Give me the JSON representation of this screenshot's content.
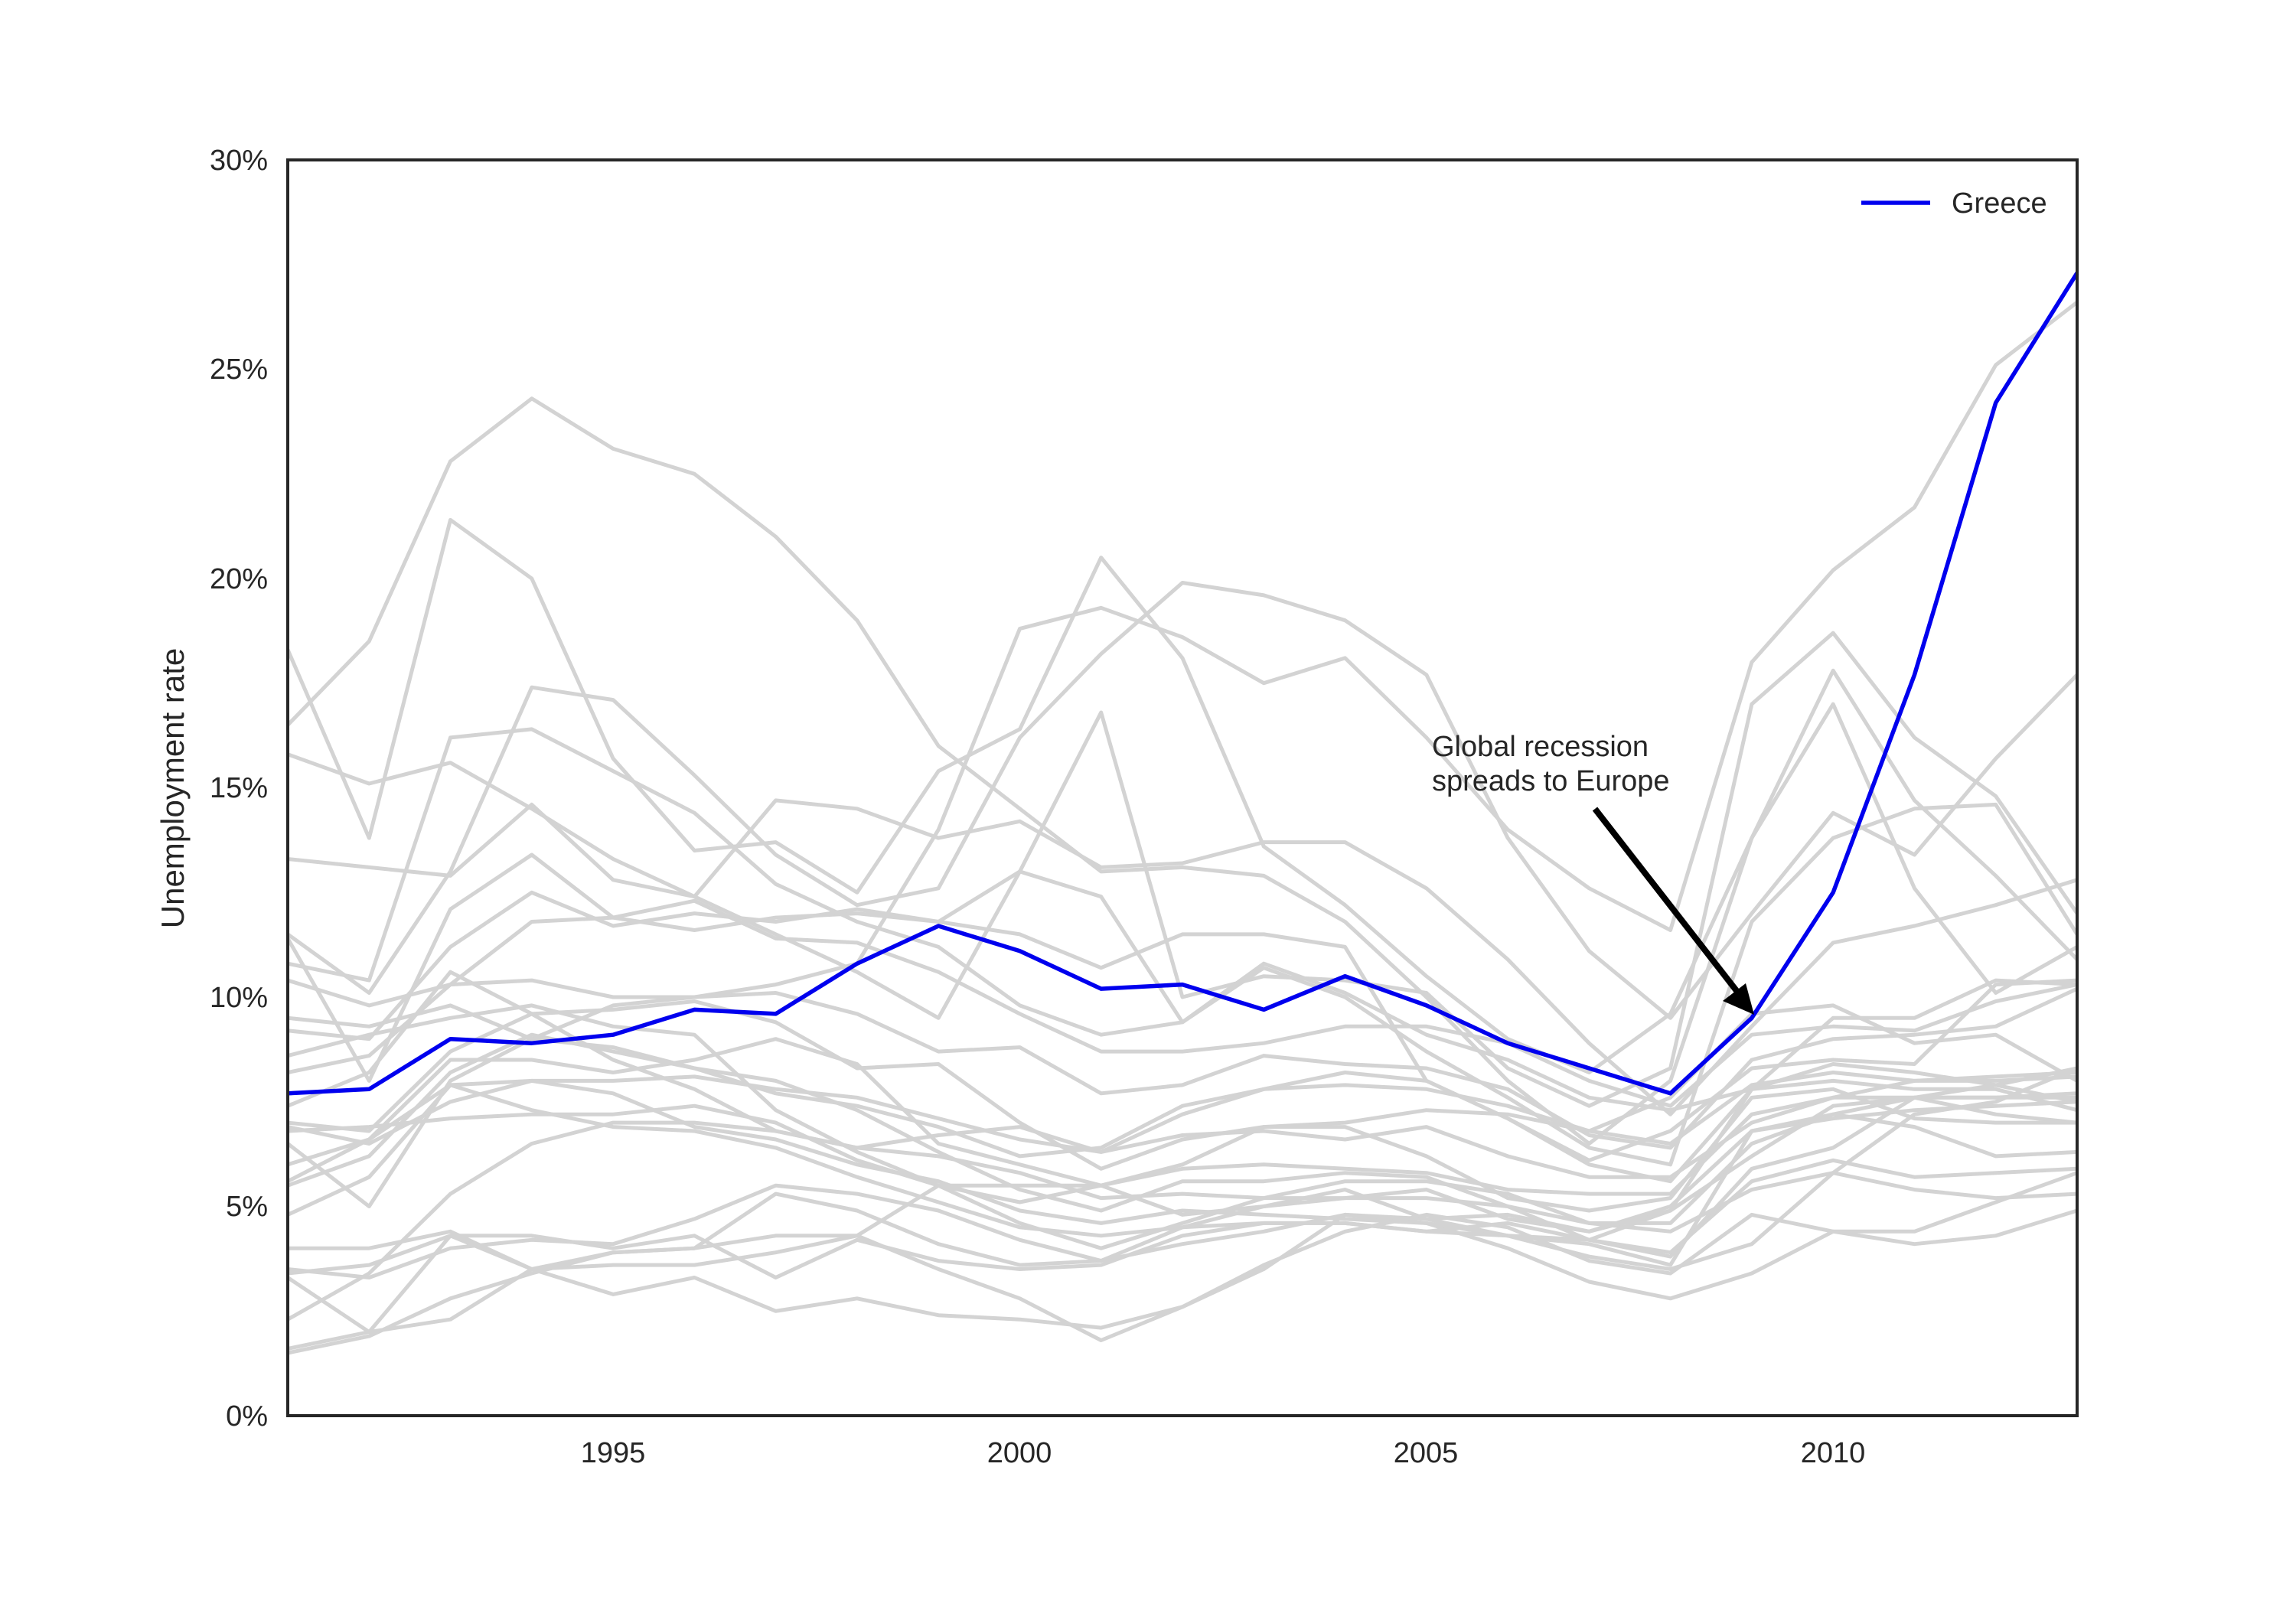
{
  "chart_data": {
    "type": "line",
    "ylabel": "Unemployment rate",
    "xlim": [
      1991,
      2013
    ],
    "ylim": [
      0,
      30
    ],
    "x_ticks": [
      1995,
      2000,
      2005,
      2010
    ],
    "y_ticks": [
      "0%",
      "5%",
      "10%",
      "15%",
      "20%",
      "25%",
      "30%"
    ],
    "y_tick_values": [
      0,
      5,
      10,
      15,
      20,
      25,
      30
    ],
    "grid": false,
    "legend_position": "top-right",
    "highlight_color": "#0000ee",
    "background_color": "#d3d3d3",
    "x": [
      1991,
      1992,
      1993,
      1994,
      1995,
      1996,
      1997,
      1998,
      1999,
      2000,
      2001,
      2002,
      2003,
      2004,
      2005,
      2006,
      2007,
      2008,
      2009,
      2010,
      2011,
      2012,
      2013
    ],
    "highlight_series": {
      "name": "Greece",
      "values": [
        7.7,
        7.8,
        9.0,
        8.9,
        9.1,
        9.7,
        9.6,
        10.8,
        11.7,
        11.1,
        10.2,
        10.3,
        9.7,
        10.5,
        9.8,
        8.9,
        8.3,
        7.7,
        9.5,
        12.5,
        17.7,
        24.2,
        27.3
      ]
    },
    "background_series": [
      {
        "values": [
          16.5,
          18.5,
          22.8,
          24.3,
          23.1,
          22.5,
          21.0,
          19.0,
          16.0,
          14.5,
          13.0,
          13.1,
          12.9,
          11.8,
          10.0,
          8.0,
          6.5,
          8.0,
          13.8,
          17.8,
          14.7,
          12.9,
          10.9
        ]
      },
      {
        "values": [
          18.3,
          13.8,
          21.4,
          20.0,
          15.7,
          13.5,
          13.7,
          12.5,
          15.4,
          16.4,
          20.5,
          18.1,
          13.6,
          12.2,
          10.5,
          9.0,
          8.2,
          9.6,
          13.8,
          17.0,
          12.6,
          10.1,
          11.2
        ]
      },
      {
        "values": [
          11.5,
          10.1,
          13.0,
          17.4,
          17.1,
          15.3,
          13.4,
          12.2,
          12.6,
          16.2,
          18.2,
          19.9,
          19.6,
          19.0,
          17.7,
          13.8,
          11.1,
          9.5,
          12.0,
          14.4,
          13.4,
          15.7,
          17.7
        ]
      },
      {
        "values": [
          6.5,
          5.0,
          8.0,
          9.0,
          9.8,
          10.0,
          10.3,
          10.8,
          14.0,
          18.8,
          19.3,
          18.6,
          17.5,
          18.1,
          16.2,
          14.0,
          12.6,
          11.6,
          18.0,
          20.2,
          21.7,
          25.1,
          26.6
        ]
      },
      {
        "values": [
          15.8,
          15.1,
          15.6,
          14.5,
          13.3,
          12.4,
          11.5,
          10.6,
          9.5,
          13.0,
          16.8,
          10.0,
          10.5,
          10.4,
          10.1,
          8.3,
          7.4,
          8.3,
          17.0,
          18.7,
          16.2,
          14.8,
          12.0
        ]
      },
      {
        "values": [
          13.3,
          13.1,
          12.9,
          14.6,
          12.8,
          12.4,
          14.7,
          14.5,
          13.8,
          14.2,
          13.1,
          13.2,
          13.7,
          13.7,
          12.6,
          10.9,
          8.9,
          7.2,
          9.3,
          11.3,
          11.7,
          12.2,
          12.8
        ]
      },
      {
        "values": [
          10.8,
          10.4,
          16.2,
          16.4,
          15.4,
          14.4,
          12.7,
          11.8,
          11.2,
          9.8,
          9.1,
          9.4,
          10.7,
          10.0,
          8.7,
          7.6,
          6.4,
          6.0,
          11.8,
          13.8,
          14.5,
          14.6,
          11.5
        ]
      },
      {
        "values": [
          11.4,
          8.0,
          12.1,
          13.4,
          11.9,
          11.6,
          11.9,
          12.0,
          11.8,
          11.5,
          10.7,
          11.5,
          11.5,
          11.2,
          8.0,
          7.1,
          6.1,
          6.8,
          8.3,
          8.5,
          8.4,
          10.3,
          10.4
        ]
      },
      {
        "values": [
          9.2,
          9.0,
          11.2,
          12.5,
          11.7,
          12.0,
          11.8,
          12.1,
          11.8,
          13.0,
          12.4,
          9.4,
          10.8,
          10.1,
          9.1,
          8.5,
          7.6,
          7.3,
          7.8,
          9.5,
          9.5,
          10.4,
          10.3
        ]
      },
      {
        "values": [
          10.4,
          9.8,
          10.3,
          11.8,
          11.9,
          12.3,
          11.4,
          11.3,
          10.6,
          9.6,
          8.7,
          8.7,
          8.9,
          9.3,
          9.3,
          8.9,
          8.0,
          7.4,
          9.1,
          9.3,
          9.2,
          9.9,
          10.3
        ]
      },
      {
        "values": [
          8.2,
          8.6,
          10.3,
          10.4,
          10.0,
          10.0,
          10.1,
          9.6,
          8.7,
          8.8,
          7.7,
          7.9,
          8.6,
          8.4,
          8.3,
          7.8,
          6.7,
          6.4,
          8.5,
          9.0,
          9.1,
          9.3,
          10.2
        ]
      },
      {
        "values": [
          6.9,
          6.5,
          7.5,
          8.0,
          8.0,
          8.1,
          7.8,
          7.6,
          7.1,
          6.6,
          6.3,
          7.2,
          7.8,
          7.9,
          7.8,
          7.4,
          6.8,
          6.5,
          7.9,
          8.2,
          8.0,
          8.0,
          8.1
        ]
      },
      {
        "values": [
          6.0,
          6.6,
          8.5,
          8.5,
          8.2,
          8.5,
          9.0,
          8.4,
          6.5,
          6.0,
          5.5,
          6.0,
          6.9,
          7.0,
          7.3,
          7.2,
          6.8,
          7.6,
          9.6,
          9.8,
          8.9,
          9.1,
          8.0
        ]
      },
      {
        "values": [
          4.0,
          4.0,
          4.4,
          3.5,
          3.6,
          3.6,
          3.9,
          4.3,
          5.5,
          5.5,
          5.5,
          4.8,
          5.0,
          5.2,
          5.2,
          5.0,
          4.6,
          4.4,
          5.4,
          5.8,
          5.4,
          5.2,
          5.3
        ]
      },
      {
        "values": [
          1.6,
          2.0,
          2.3,
          3.5,
          2.9,
          3.3,
          2.5,
          2.8,
          2.4,
          2.3,
          2.1,
          2.6,
          3.5,
          4.8,
          4.6,
          4.0,
          3.2,
          2.8,
          3.4,
          4.4,
          4.1,
          4.3,
          4.9
        ]
      },
      {
        "values": [
          3.4,
          3.6,
          4.3,
          4.3,
          4.0,
          4.3,
          3.3,
          4.2,
          3.7,
          3.5,
          3.6,
          4.3,
          4.6,
          4.6,
          4.4,
          4.6,
          4.2,
          4.9,
          7.8,
          8.4,
          8.2,
          7.9,
          7.5
        ]
      },
      {
        "values": [
          2.3,
          3.4,
          5.3,
          6.5,
          7.0,
          7.0,
          6.8,
          6.4,
          6.7,
          6.9,
          6.3,
          6.7,
          6.8,
          6.6,
          6.9,
          6.2,
          5.7,
          5.7,
          7.0,
          7.6,
          8.0,
          8.1,
          8.2
        ]
      },
      {
        "values": [
          7.0,
          6.8,
          8.7,
          9.6,
          9.7,
          9.9,
          9.4,
          8.3,
          8.4,
          7.0,
          5.9,
          6.6,
          6.9,
          6.9,
          6.2,
          5.2,
          4.9,
          5.2,
          7.6,
          7.8,
          7.1,
          7.0,
          7.0
        ]
      },
      {
        "values": [
          5.5,
          6.2,
          8.2,
          9.1,
          8.7,
          8.3,
          8.0,
          7.3,
          6.3,
          5.4,
          4.9,
          5.6,
          5.6,
          5.8,
          5.7,
          5.0,
          4.2,
          3.8,
          5.9,
          6.4,
          7.6,
          7.6,
          7.7
        ]
      },
      {
        "values": [
          7.4,
          8.2,
          10.6,
          9.6,
          8.5,
          7.8,
          6.8,
          6.4,
          6.2,
          5.8,
          5.2,
          5.3,
          5.2,
          5.2,
          5.4,
          4.7,
          4.4,
          4.9,
          6.2,
          7.4,
          7.6,
          7.2,
          7.0
        ]
      },
      {
        "values": [
          8.6,
          9.1,
          9.5,
          9.8,
          9.3,
          9.1,
          7.3,
          6.3,
          5.5,
          4.6,
          4.0,
          4.6,
          5.2,
          5.6,
          5.6,
          5.3,
          4.6,
          4.6,
          6.5,
          7.2,
          6.9,
          6.2,
          6.3
        ]
      },
      {
        "values": [
          4.8,
          5.7,
          7.9,
          8.0,
          7.7,
          6.9,
          6.6,
          6.0,
          5.6,
          4.9,
          4.6,
          4.9,
          4.8,
          4.7,
          4.6,
          4.3,
          3.8,
          3.5,
          4.1,
          5.8,
          7.2,
          7.5,
          8.3
        ]
      },
      {
        "values": [
          6.8,
          6.9,
          7.1,
          7.2,
          7.2,
          7.4,
          7.0,
          6.1,
          5.5,
          5.1,
          5.5,
          5.9,
          6.0,
          5.9,
          5.8,
          5.4,
          5.3,
          5.3,
          7.2,
          7.6,
          7.6,
          7.6,
          7.6
        ]
      },
      {
        "values": [
          5.6,
          6.6,
          7.9,
          7.3,
          6.9,
          6.8,
          6.4,
          5.7,
          5.1,
          4.5,
          4.3,
          4.5,
          4.6,
          4.6,
          4.4,
          4.3,
          4.2,
          3.9,
          5.6,
          6.1,
          5.7,
          5.8,
          5.9
        ]
      },
      {
        "values": [
          3.3,
          2.0,
          4.3,
          3.5,
          3.9,
          4.0,
          4.3,
          4.3,
          3.5,
          2.8,
          1.8,
          2.6,
          3.6,
          4.4,
          4.8,
          4.5,
          3.7,
          3.4,
          4.8,
          4.4,
          4.4,
          5.1,
          5.8
        ]
      },
      {
        "values": [
          1.5,
          1.9,
          2.8,
          3.4,
          3.9,
          4.0,
          5.3,
          4.9,
          4.1,
          3.6,
          3.7,
          4.1,
          4.4,
          4.8,
          4.7,
          4.8,
          4.4,
          5.0,
          6.8,
          7.2,
          7.6,
          7.9,
          8.3
        ]
      },
      {
        "values": [
          3.5,
          3.3,
          4.0,
          4.2,
          4.1,
          4.7,
          5.5,
          5.3,
          4.9,
          4.2,
          3.7,
          4.5,
          5.0,
          5.4,
          4.7,
          4.3,
          4.1,
          3.6,
          6.8,
          7.1,
          7.3,
          7.4,
          7.5
        ]
      },
      {
        "values": [
          9.5,
          9.3,
          9.8,
          9.0,
          8.8,
          8.3,
          7.7,
          7.4,
          6.9,
          6.2,
          6.4,
          7.4,
          7.8,
          8.2,
          8.0,
          7.1,
          6.0,
          5.6,
          7.8,
          8.0,
          7.8,
          7.8,
          7.3
        ]
      }
    ],
    "annotation": {
      "text_line1": "Global recession",
      "text_line2": "spreads to Europe",
      "target_x": 2009,
      "target_y": 9.5
    }
  }
}
